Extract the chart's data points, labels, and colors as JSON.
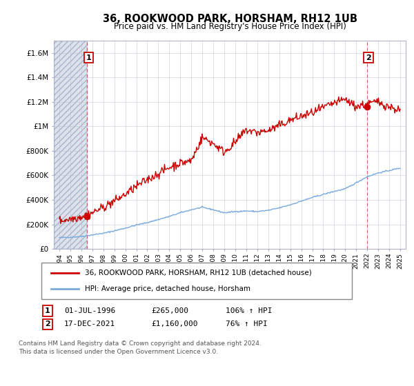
{
  "title": "36, ROOKWOOD PARK, HORSHAM, RH12 1UB",
  "subtitle": "Price paid vs. HM Land Registry's House Price Index (HPI)",
  "sale1_date": "01-JUL-1996",
  "sale1_price": "£265,000",
  "sale1_hpi": "106% ↑ HPI",
  "sale1_x": 1996.5,
  "sale1_y": 265000,
  "sale2_date": "17-DEC-2021",
  "sale2_price": "£1,160,000",
  "sale2_hpi": "76% ↑ HPI",
  "sale2_x": 2021.96,
  "sale2_y": 1160000,
  "legend_line1": "36, ROOKWOOD PARK, HORSHAM, RH12 1UB (detached house)",
  "legend_line2": "HPI: Average price, detached house, Horsham",
  "footer1": "Contains HM Land Registry data © Crown copyright and database right 2024.",
  "footer2": "This data is licensed under the Open Government Licence v3.0.",
  "line_color_red": "#cc0000",
  "line_color_blue": "#7aaadd",
  "hatch_color": "#c8d0e0",
  "grid_color": "#bbbbcc",
  "xlim": [
    1993.5,
    2025.5
  ],
  "ylim": [
    0,
    1700000
  ],
  "yticks": [
    0,
    200000,
    400000,
    600000,
    800000,
    1000000,
    1200000,
    1400000,
    1600000
  ],
  "ytick_labels": [
    "£0",
    "£200K",
    "£400K",
    "£600K",
    "£800K",
    "£1M",
    "£1.2M",
    "£1.4M",
    "£1.6M"
  ],
  "xticks": [
    1994,
    1995,
    1996,
    1997,
    1998,
    1999,
    2000,
    2001,
    2002,
    2003,
    2004,
    2005,
    2006,
    2007,
    2008,
    2009,
    2010,
    2011,
    2012,
    2013,
    2014,
    2015,
    2016,
    2017,
    2018,
    2019,
    2020,
    2021,
    2022,
    2023,
    2024,
    2025
  ]
}
